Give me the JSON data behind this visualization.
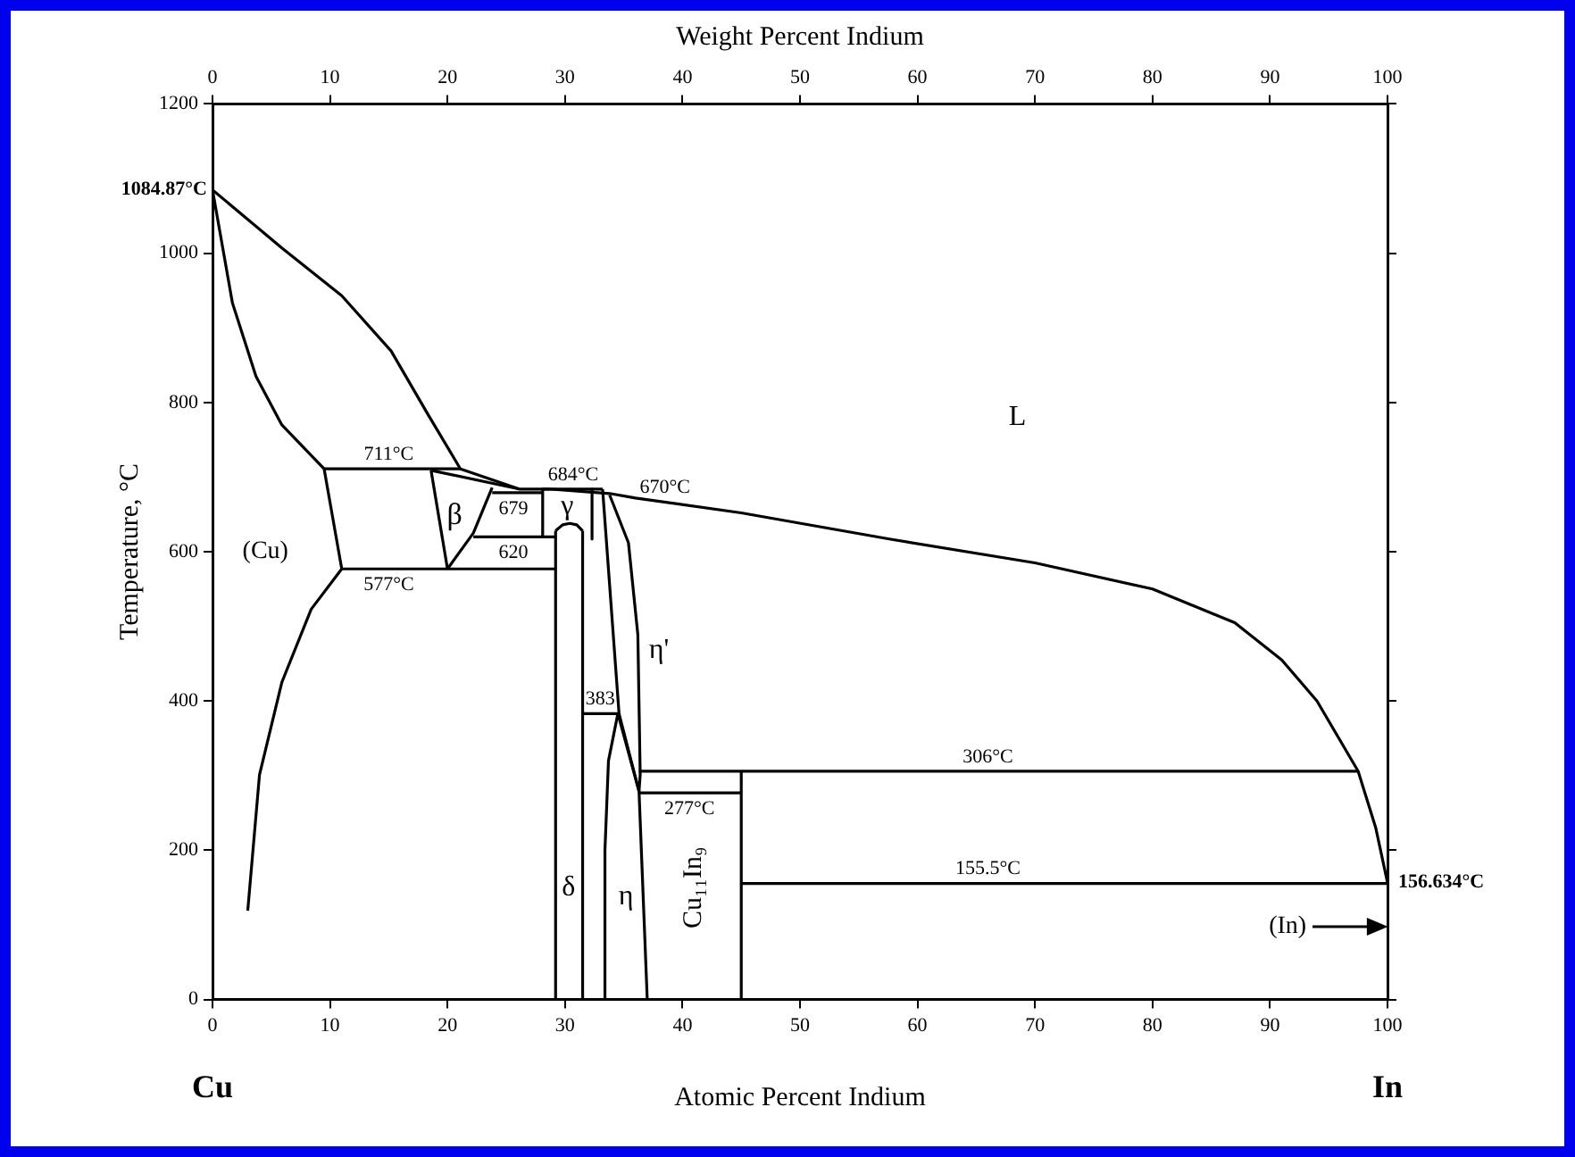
{
  "chart_data": {
    "type": "line",
    "x2label": "Weight Percent Indium",
    "xlabel": "Atomic Percent Indium",
    "ylabel": "Temperature, °C",
    "xlim": [
      0,
      100
    ],
    "xticks": [
      0,
      10,
      20,
      30,
      40,
      50,
      60,
      70,
      80,
      90,
      100
    ],
    "x2lim": [
      0,
      100
    ],
    "x2ticks": [
      0,
      10,
      20,
      30,
      40,
      50,
      60,
      70,
      80,
      90,
      100
    ],
    "ylim": [
      0,
      1200
    ],
    "yticks": [
      0,
      200,
      400,
      600,
      800,
      1000,
      1200
    ],
    "grid": false,
    "legend": false,
    "marker": "none",
    "line_style": "solid",
    "series": [
      {
        "color": "#000000",
        "x": [
          0,
          5.9,
          11.0,
          15.2,
          18.3,
          21.1,
          26.1,
          28.6,
          33.8,
          36,
          45,
          57.6,
          70,
          80,
          87,
          91,
          94,
          97.5,
          99,
          100
        ],
        "values": [
          1084.87,
          1007,
          943,
          869,
          785,
          711,
          684,
          684,
          678,
          672,
          652,
          617,
          585,
          550,
          505,
          455,
          400,
          306,
          230,
          156.634
        ]
      },
      {
        "color": "#000000",
        "x": [
          0,
          1.7,
          3.7,
          5.9,
          9.5
        ],
        "values": [
          1084.87,
          933,
          835,
          770,
          711
        ]
      },
      {
        "color": "#000000",
        "x": [
          9.5,
          21.1
        ],
        "values": [
          711,
          711
        ]
      },
      {
        "color": "#000000",
        "x": [
          9.5,
          11.0
        ],
        "values": [
          711,
          577
        ]
      },
      {
        "color": "#000000",
        "x": [
          11.0,
          8.4,
          5.9,
          4.0,
          3.0
        ],
        "values": [
          577,
          523,
          425,
          301,
          119
        ]
      },
      {
        "color": "#000000",
        "x": [
          11.0,
          29.2
        ],
        "values": [
          577,
          577
        ]
      },
      {
        "color": "#000000",
        "x": [
          18.6,
          20.0
        ],
        "values": [
          709,
          577
        ]
      },
      {
        "color": "#000000",
        "x": [
          20.0,
          22.2,
          23.8
        ],
        "values": [
          577,
          625,
          686
        ]
      },
      {
        "color": "#000000",
        "x": [
          18.6,
          26.1
        ],
        "values": [
          709,
          684
        ]
      },
      {
        "color": "#000000",
        "x": [
          23.8,
          28.1
        ],
        "values": [
          679,
          679
        ]
      },
      {
        "color": "#000000",
        "x": [
          22.2,
          29.2
        ],
        "values": [
          620,
          620
        ]
      },
      {
        "color": "#000000",
        "x": [
          28.1,
          28.1
        ],
        "values": [
          684,
          620
        ]
      },
      {
        "color": "#000000",
        "x": [
          28.1,
          33.2
        ],
        "values": [
          684,
          684
        ]
      },
      {
        "color": "#000000",
        "x": [
          32.3,
          32.3
        ],
        "values": [
          684,
          617
        ]
      },
      {
        "color": "#000000",
        "x": [
          29.2,
          29.2
        ],
        "values": [
          0,
          628
        ]
      },
      {
        "color": "#000000",
        "x": [
          31.5,
          31.5
        ],
        "values": [
          0,
          628
        ]
      },
      {
        "color": "#000000",
        "x": [
          29.2,
          29.8,
          30.4,
          31.0,
          31.5
        ],
        "values": [
          628,
          636,
          638,
          636,
          628
        ]
      },
      {
        "color": "#000000",
        "x": [
          31.5,
          34.6
        ],
        "values": [
          383,
          383
        ]
      },
      {
        "color": "#000000",
        "x": [
          33.3,
          33.4,
          33.7,
          34.5
        ],
        "values": [
          0,
          200,
          320,
          383
        ]
      },
      {
        "color": "#000000",
        "x": [
          34.5,
          36.3,
          37.0
        ],
        "values": [
          383,
          279,
          0
        ]
      },
      {
        "color": "#000000",
        "x": [
          33.2,
          34.6,
          36.3
        ],
        "values": [
          684,
          383,
          279
        ]
      },
      {
        "color": "#000000",
        "x": [
          33.8,
          35.4,
          36.2,
          36.4,
          36.3
        ],
        "values": [
          676,
          612,
          489,
          301,
          279
        ]
      },
      {
        "color": "#000000",
        "x": [
          36.3,
          97.5
        ],
        "values": [
          306,
          306
        ]
      },
      {
        "color": "#000000",
        "x": [
          36.3,
          45.0
        ],
        "values": [
          277,
          277
        ]
      },
      {
        "color": "#000000",
        "x": [
          45.0,
          45.0
        ],
        "values": [
          0,
          306
        ]
      },
      {
        "color": "#000000",
        "x": [
          45.0,
          100
        ],
        "values": [
          155.5,
          155.5
        ]
      }
    ],
    "annotations": [
      {
        "text": "1084.87°C",
        "x": 0,
        "y": 1084.87
      },
      {
        "text": "156.634°C",
        "x": 100,
        "y": 156.634
      },
      {
        "text": "711°C",
        "x": 15,
        "y": 711
      },
      {
        "text": "577°C",
        "x": 15,
        "y": 577
      },
      {
        "text": "679",
        "x": 25.6,
        "y": 679
      },
      {
        "text": "620",
        "x": 25.6,
        "y": 620
      },
      {
        "text": "684°C",
        "x": 30.7,
        "y": 684
      },
      {
        "text": "670°C",
        "x": 38.5,
        "y": 667
      },
      {
        "text": "383",
        "x": 33,
        "y": 383
      },
      {
        "text": "277°C",
        "x": 40.6,
        "y": 277
      },
      {
        "text": "306°C",
        "x": 66,
        "y": 306
      },
      {
        "text": "155.5°C",
        "x": 66,
        "y": 155.5
      },
      "L",
      "(Cu)",
      "β",
      "γ",
      "η'",
      "δ",
      "η",
      "Cu₁₁In₉",
      "(In)",
      "Cu",
      "In"
    ]
  }
}
